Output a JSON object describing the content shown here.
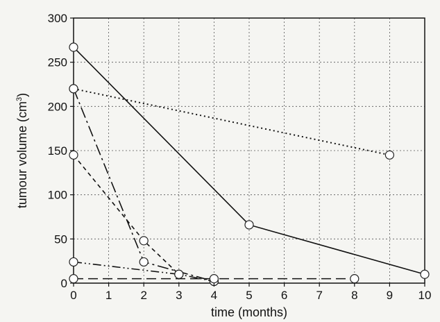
{
  "chart_data": {
    "type": "line",
    "title": "",
    "xlabel": "time (months)",
    "ylabel_main": "tumour volume (cm",
    "ylabel_sup": "3",
    "ylabel_close": ")",
    "xlim": [
      0,
      10
    ],
    "ylim": [
      0,
      300
    ],
    "xticks": [
      0,
      1,
      2,
      3,
      4,
      5,
      6,
      7,
      8,
      9,
      10
    ],
    "yticks": [
      0,
      50,
      100,
      150,
      200,
      250,
      300
    ],
    "grid": true,
    "legend": "none",
    "series": [
      {
        "style": "solid",
        "x": [
          0,
          5,
          10
        ],
        "y": [
          267,
          66,
          10
        ]
      },
      {
        "style": "dotted",
        "x": [
          0,
          9
        ],
        "y": [
          220,
          145
        ]
      },
      {
        "style": "dash-dot",
        "x": [
          0,
          2,
          4
        ],
        "y": [
          220,
          24,
          2
        ]
      },
      {
        "style": "short-dash",
        "x": [
          0,
          2,
          3
        ],
        "y": [
          145,
          48,
          10
        ]
      },
      {
        "style": "dash-dot-dot",
        "x": [
          0,
          3,
          4
        ],
        "y": [
          24,
          10,
          2
        ]
      },
      {
        "style": "long-dash",
        "x": [
          0,
          4,
          8
        ],
        "y": [
          5,
          5,
          5
        ]
      }
    ]
  }
}
